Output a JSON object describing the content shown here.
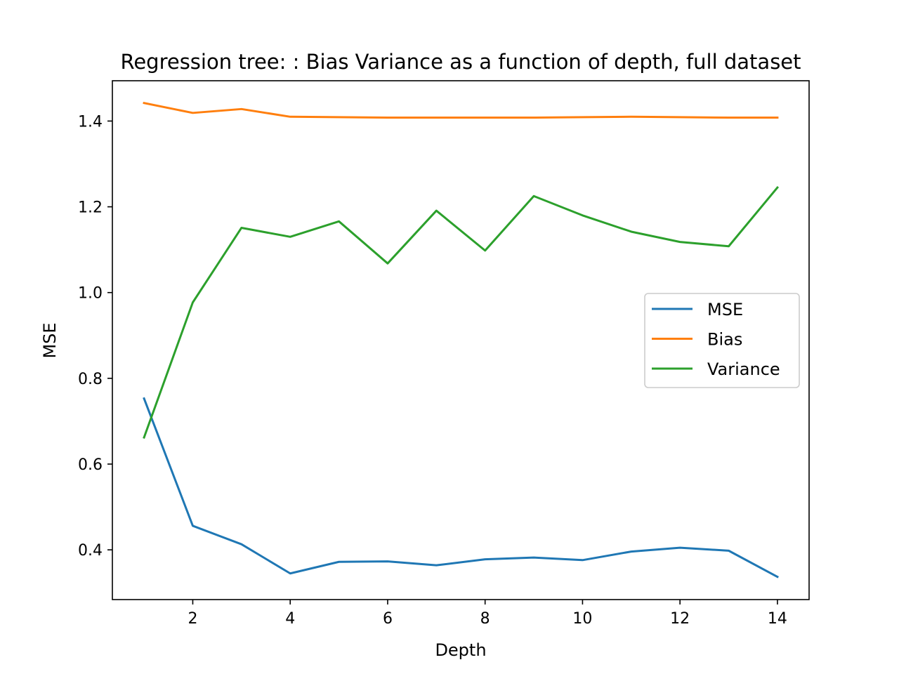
{
  "chart_data": {
    "type": "line",
    "title": "Regression tree: : Bias Variance as a function of depth, full dataset",
    "xlabel": "Depth",
    "ylabel": "MSE",
    "xlim": [
      0.35,
      14.65
    ],
    "ylim": [
      0.284,
      1.494
    ],
    "xticks": [
      2,
      4,
      6,
      8,
      10,
      12,
      14
    ],
    "yticks": [
      0.4,
      0.6,
      0.8,
      1.0,
      1.2,
      1.4
    ],
    "x": [
      1,
      2,
      3,
      4,
      5,
      6,
      7,
      8,
      9,
      10,
      11,
      12,
      13,
      14
    ],
    "grid": false,
    "legend_position": "center-right",
    "series": [
      {
        "name": "MSE",
        "color": "#1f77b4",
        "values": [
          0.753,
          0.456,
          0.413,
          0.345,
          0.372,
          0.373,
          0.364,
          0.378,
          0.382,
          0.376,
          0.396,
          0.405,
          0.398,
          0.337
        ]
      },
      {
        "name": "Bias",
        "color": "#ff7f0e",
        "values": [
          1.442,
          1.419,
          1.428,
          1.41,
          1.409,
          1.408,
          1.408,
          1.408,
          1.408,
          1.409,
          1.41,
          1.409,
          1.408,
          1.408
        ]
      },
      {
        "name": "Variance",
        "color": "#2ca02c",
        "values": [
          0.662,
          0.977,
          1.151,
          1.13,
          1.166,
          1.068,
          1.191,
          1.098,
          1.225,
          1.18,
          1.142,
          1.118,
          1.108,
          1.245
        ]
      }
    ]
  }
}
